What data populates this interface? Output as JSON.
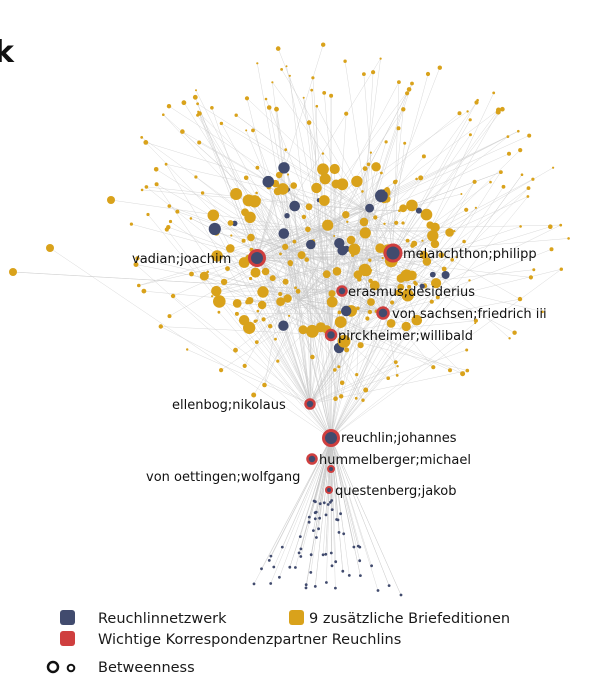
{
  "title_fragment": "k",
  "colors": {
    "reuchlin_network": "#414b6e",
    "additional_editions": "#d9a21b",
    "key_partners": "#cf3f3f",
    "edge": "#c9c9c9"
  },
  "legend": {
    "reuchlin_network": "Reuchlinnetzwerk",
    "additional_editions": "9 zusätzliche Briefeditionen",
    "key_partners": "Wichtige Korrespondenzpartner Reuchlins",
    "betweenness": "Betweenness"
  },
  "nodes": [
    {
      "id": "melanchthon",
      "label": "melanchthon;philipp",
      "group": "additional_editions",
      "key_partner": true,
      "betweenness": "high"
    },
    {
      "id": "vadian",
      "label": "vadian;joachim",
      "group": "additional_editions",
      "key_partner": true,
      "betweenness": "high"
    },
    {
      "id": "erasmus",
      "label": "erasmus;desiderius",
      "group": "reuchlin_network",
      "key_partner": true,
      "betweenness": "medium"
    },
    {
      "id": "vonsachsen",
      "label": "von sachsen;friedrich iii",
      "group": "reuchlin_network",
      "key_partner": true,
      "betweenness": "medium"
    },
    {
      "id": "pirckheimer",
      "label": "pirckheimer;willibald",
      "group": "reuchlin_network",
      "key_partner": true,
      "betweenness": "medium"
    },
    {
      "id": "ellenbog",
      "label": "ellenbog;nikolaus",
      "group": "reuchlin_network",
      "key_partner": true,
      "betweenness": "medium"
    },
    {
      "id": "reuchlin",
      "label": "reuchlin;johannes",
      "group": "reuchlin_network",
      "key_partner": true,
      "betweenness": "high"
    },
    {
      "id": "hummelberger",
      "label": "hummelberger;michael",
      "group": "reuchlin_network",
      "key_partner": true,
      "betweenness": "medium"
    },
    {
      "id": "vonoettingen",
      "label": "von oettingen;wolfgang",
      "group": "reuchlin_network",
      "key_partner": true,
      "betweenness": "low"
    },
    {
      "id": "questenberg",
      "label": "questenberg;jakob",
      "group": "reuchlin_network",
      "key_partner": true,
      "betweenness": "low"
    }
  ]
}
